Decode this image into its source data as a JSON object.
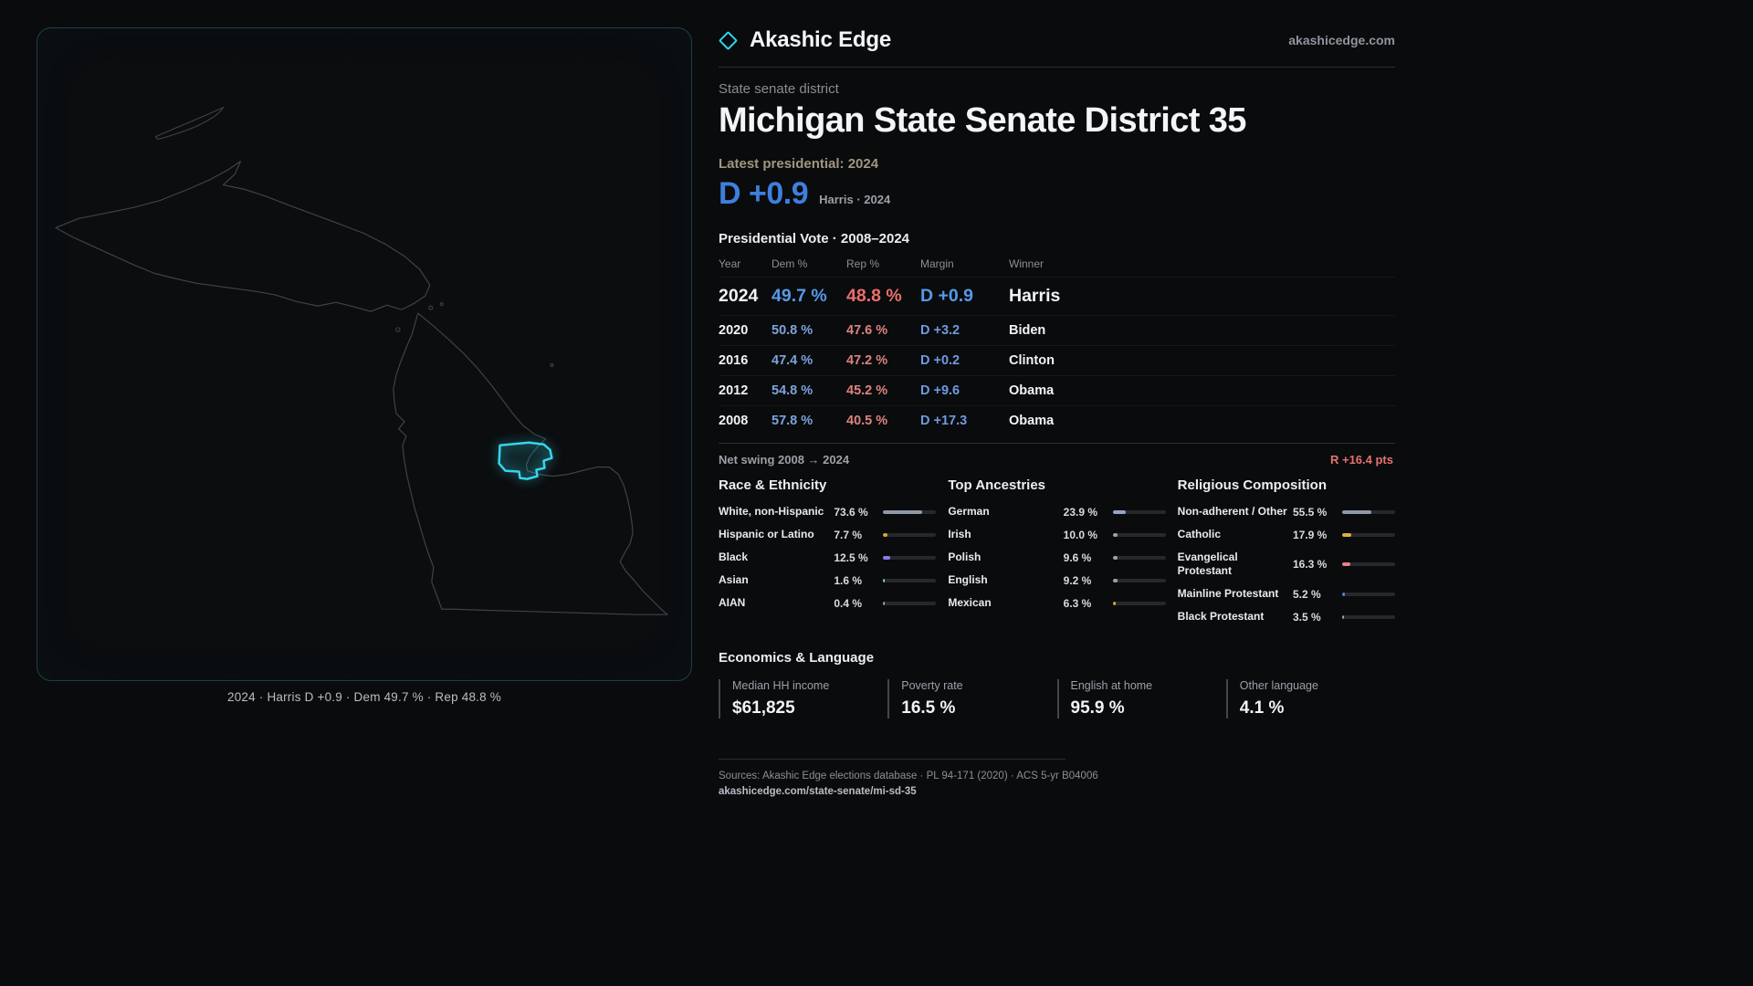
{
  "header": {
    "brand": "Akashic Edge",
    "site_link": "akashicedge.com"
  },
  "hero": {
    "kicker": "State senate district",
    "title": "Michigan State Senate District 35",
    "latest_label": "Latest presidential: 2024",
    "headline_margin": "D +0.9",
    "headline_margin_note": "Harris · 2024"
  },
  "map_panel": {
    "caption": "2024 · Harris D +0.9 · Dem 49.7 % · Rep 48.8 %"
  },
  "vote_table": {
    "title": "Presidential Vote · 2008–2024",
    "columns": {
      "year": "Year",
      "dem": "Dem %",
      "rep": "Rep %",
      "margin": "Margin",
      "winner": "Winner"
    },
    "rows": [
      {
        "year": "2024",
        "dem": "49.7 %",
        "rep": "48.8 %",
        "margin": "D +0.9",
        "winner": "Harris"
      },
      {
        "year": "2020",
        "dem": "50.8 %",
        "rep": "47.6 %",
        "margin": "D +3.2",
        "winner": "Biden"
      },
      {
        "year": "2016",
        "dem": "47.4 %",
        "rep": "47.2 %",
        "margin": "D +0.2",
        "winner": "Clinton"
      },
      {
        "year": "2012",
        "dem": "54.8 %",
        "rep": "45.2 %",
        "margin": "D +9.6",
        "winner": "Obama"
      },
      {
        "year": "2008",
        "dem": "57.8 %",
        "rep": "40.5 %",
        "margin": "D +17.3",
        "winner": "Obama"
      }
    ]
  },
  "swing": {
    "label": "Net swing 2008 → 2024",
    "value": "R +16.4 pts"
  },
  "demographics": {
    "race": {
      "title": "Race & Ethnicity",
      "items": [
        {
          "label": "White, non-Hispanic",
          "value": "73.6 %",
          "pct": 73.6,
          "color": "#8e99a8"
        },
        {
          "label": "Hispanic or Latino",
          "value": "7.7 %",
          "pct": 7.7,
          "color": "#d9a13c"
        },
        {
          "label": "Black",
          "value": "12.5 %",
          "pct": 12.5,
          "color": "#8b7ae8"
        },
        {
          "label": "Asian",
          "value": "1.6 %",
          "pct": 1.6,
          "color": "#7dd8c5"
        },
        {
          "label": "AIAN",
          "value": "0.4 %",
          "pct": 0.4,
          "color": "#9aa2ab"
        }
      ]
    },
    "ancestries": {
      "title": "Top Ancestries",
      "items": [
        {
          "label": "German",
          "value": "23.9 %",
          "pct": 23.9,
          "color": "#93a7c4"
        },
        {
          "label": "Irish",
          "value": "10.0 %",
          "pct": 10.0,
          "color": "#9aa2ab"
        },
        {
          "label": "Polish",
          "value": "9.6 %",
          "pct": 9.6,
          "color": "#9aa2ab"
        },
        {
          "label": "English",
          "value": "9.2 %",
          "pct": 9.2,
          "color": "#9aa2ab"
        },
        {
          "label": "Mexican",
          "value": "6.3 %",
          "pct": 6.3,
          "color": "#d9a13c"
        }
      ]
    },
    "religion": {
      "title": "Religious Composition",
      "items": [
        {
          "label": "Non-adherent / Other",
          "value": "55.5 %",
          "pct": 55.5,
          "color": "#8e99a8"
        },
        {
          "label": "Catholic",
          "value": "17.9 %",
          "pct": 17.9,
          "color": "#d9b33c"
        },
        {
          "label": "Evangelical Protestant",
          "value": "16.3 %",
          "pct": 16.3,
          "color": "#e8827e"
        },
        {
          "label": "Mainline Protestant",
          "value": "5.2 %",
          "pct": 5.2,
          "color": "#4f82d9"
        },
        {
          "label": "Black Protestant",
          "value": "3.5 %",
          "pct": 3.5,
          "color": "#9aa2ab"
        }
      ]
    }
  },
  "economics": {
    "title": "Economics & Language",
    "stats": [
      {
        "label": "Median HH income",
        "value": "$61,825"
      },
      {
        "label": "Poverty rate",
        "value": "16.5 %"
      },
      {
        "label": "English at home",
        "value": "95.9 %"
      },
      {
        "label": "Other language",
        "value": "4.1 %"
      }
    ]
  },
  "footer": {
    "sources": "Sources: Akashic Edge elections database · PL 94-171 (2020) · ACS 5-yr B04006",
    "permalink": "akashicedge.com/state-senate/mi-sd-35"
  },
  "colors": {
    "accent_cyan": "#35d6ea",
    "dem_blue_bright": "#3f7fdd",
    "dem_blue_table": "#7da3dc",
    "rep_red_table": "#dd8280",
    "swing_red": "#e5726e",
    "background": "#0a0b0d"
  },
  "chart_data": [
    {
      "type": "table",
      "title": "Presidential Vote · 2008–2024",
      "columns": [
        "Year",
        "Dem %",
        "Rep %",
        "Margin",
        "Winner"
      ],
      "rows": [
        [
          "2024",
          49.7,
          48.8,
          "D +0.9",
          "Harris"
        ],
        [
          "2020",
          50.8,
          47.6,
          "D +3.2",
          "Biden"
        ],
        [
          "2016",
          47.4,
          47.2,
          "D +0.2",
          "Clinton"
        ],
        [
          "2012",
          54.8,
          45.2,
          "D +9.6",
          "Obama"
        ],
        [
          "2008",
          57.8,
          40.5,
          "D +17.3",
          "Obama"
        ]
      ],
      "annotations": [
        "Net swing 2008 → 2024: R +16.4 pts",
        "Latest presidential 2024: D +0.9 (Harris)"
      ]
    },
    {
      "type": "bar",
      "title": "Race & Ethnicity",
      "categories": [
        "White, non-Hispanic",
        "Hispanic or Latino",
        "Black",
        "Asian",
        "AIAN"
      ],
      "values": [
        73.6,
        7.7,
        12.5,
        1.6,
        0.4
      ],
      "xlabel": "",
      "ylabel": "%",
      "ylim": [
        0,
        100
      ]
    },
    {
      "type": "bar",
      "title": "Top Ancestries",
      "categories": [
        "German",
        "Irish",
        "Polish",
        "English",
        "Mexican"
      ],
      "values": [
        23.9,
        10.0,
        9.6,
        9.2,
        6.3
      ],
      "xlabel": "",
      "ylabel": "%",
      "ylim": [
        0,
        100
      ]
    },
    {
      "type": "bar",
      "title": "Religious Composition",
      "categories": [
        "Non-adherent / Other",
        "Catholic",
        "Evangelical Protestant",
        "Mainline Protestant",
        "Black Protestant"
      ],
      "values": [
        55.5,
        17.9,
        16.3,
        5.2,
        3.5
      ],
      "xlabel": "",
      "ylabel": "%",
      "ylim": [
        0,
        100
      ]
    },
    {
      "type": "table",
      "title": "Economics & Language",
      "columns": [
        "Median HH income",
        "Poverty rate",
        "English at home",
        "Other language"
      ],
      "rows": [
        [
          "$61,825",
          "16.5 %",
          "95.9 %",
          "4.1 %"
        ]
      ]
    }
  ]
}
